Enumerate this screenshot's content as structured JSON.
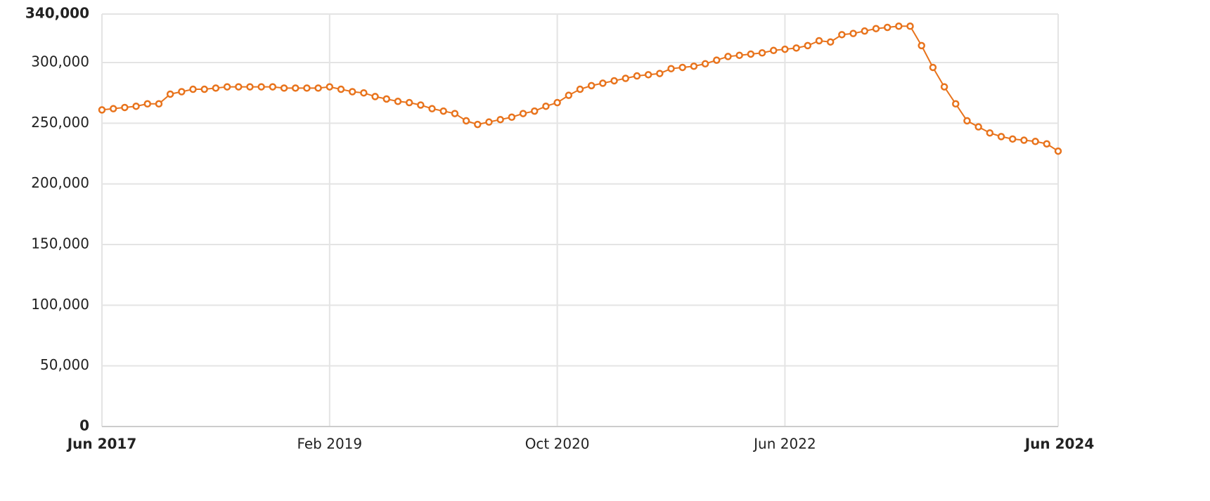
{
  "chart_data": {
    "type": "line",
    "categories": [
      "Jun 2017",
      null,
      null,
      null,
      null,
      null,
      null,
      null,
      null,
      null,
      null,
      null,
      null,
      null,
      null,
      null,
      null,
      null,
      null,
      null,
      "Feb 2019",
      null,
      null,
      null,
      null,
      null,
      null,
      null,
      null,
      null,
      null,
      null,
      null,
      null,
      null,
      null,
      null,
      null,
      null,
      null,
      "Oct 2020",
      null,
      null,
      null,
      null,
      null,
      null,
      null,
      null,
      null,
      null,
      null,
      null,
      null,
      null,
      null,
      null,
      null,
      null,
      null,
      "Jun 2022",
      null,
      null,
      null,
      null,
      null,
      null,
      null,
      null,
      null,
      null,
      null,
      null,
      null,
      null,
      null,
      null,
      null,
      null,
      null,
      null,
      null,
      null,
      null,
      "Jun 2024"
    ],
    "series": [
      {
        "color": "#e8731c",
        "values": [
          261000,
          262000,
          263000,
          264000,
          266000,
          266000,
          274000,
          276000,
          278000,
          278000,
          279000,
          280000,
          280000,
          280000,
          280000,
          280000,
          279000,
          279000,
          279000,
          279000,
          280000,
          278000,
          276000,
          275000,
          272000,
          270000,
          268000,
          267000,
          265000,
          262000,
          260000,
          258000,
          252000,
          249000,
          251000,
          253000,
          255000,
          258000,
          260000,
          264000,
          267000,
          273000,
          278000,
          281000,
          283000,
          285000,
          287000,
          289000,
          290000,
          291000,
          295000,
          296000,
          297000,
          299000,
          302000,
          305000,
          306000,
          307000,
          308000,
          310000,
          311000,
          312000,
          314000,
          318000,
          317000,
          323000,
          324000,
          326000,
          328000,
          329000,
          330000,
          330000,
          314000,
          296000,
          280000,
          266000,
          252000,
          247000,
          242000,
          239000,
          237000,
          236000,
          235000,
          233000,
          227000
        ]
      }
    ],
    "ylim": [
      0,
      340000
    ],
    "yticks": [
      0,
      {
        "value": 50000,
        "label": "50,000"
      },
      {
        "value": 100000,
        "label": "100,000"
      },
      {
        "value": 150000,
        "label": "150,000"
      },
      {
        "value": 200000,
        "label": "200,000"
      },
      {
        "value": 250000,
        "label": "250,000"
      },
      {
        "value": 300000,
        "label": "300,000"
      },
      {
        "value": 340000,
        "label": "340,000"
      }
    ],
    "grid": true
  }
}
